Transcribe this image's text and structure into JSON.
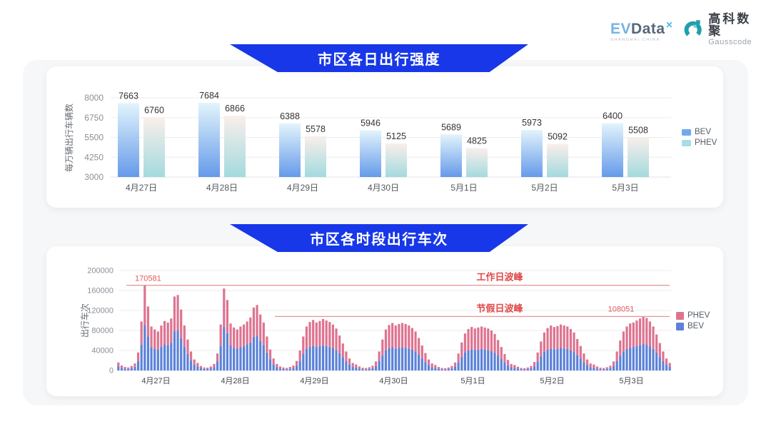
{
  "brand": {
    "evdata": {
      "part1": "EV",
      "part2": "Data",
      "sup": "✕",
      "subtext": "SHANGHAI CHINA"
    },
    "gausscode": {
      "cn": "高科数聚",
      "en": "Gausscode"
    }
  },
  "colors": {
    "banner_blue": "#1737e8",
    "top_bev_gradient": [
      "#e2f4fc",
      "#659ae9"
    ],
    "top_phev_gradient": [
      "#f9efeb",
      "#a3dade"
    ],
    "legend_bev_top": "#72a9ee",
    "legend_phev_top": "#a9dde4",
    "bottom_bev": "#5b82d8",
    "bottom_phev": "#de7390",
    "reference_red_line": "#e69494",
    "reference_red_text": "#e04848"
  },
  "chart_data": [
    {
      "type": "bar",
      "title": "市区各日出行强度",
      "ylabel": "每万辆出行车辆数",
      "ylim": [
        3000,
        8000
      ],
      "yticks": [
        8000,
        6750,
        5500,
        4250,
        3000
      ],
      "grid": true,
      "legend_position": "right",
      "categories": [
        "4月27日",
        "4月28日",
        "4月29日",
        "4月30日",
        "5月1日",
        "5月2日",
        "5月3日"
      ],
      "series": [
        {
          "name": "BEV",
          "values": [
            7663,
            7684,
            6388,
            5946,
            5689,
            5973,
            6400
          ],
          "gradient": [
            "#e2f4fc",
            "#659ae9"
          ]
        },
        {
          "name": "PHEV",
          "values": [
            6760,
            6866,
            5578,
            5125,
            4825,
            5092,
            5508
          ],
          "gradient": [
            "#f9efeb",
            "#a3dade"
          ]
        }
      ]
    },
    {
      "type": "stacked-bar",
      "title": "市区各时段出行车次",
      "ylabel": "出行车次",
      "ylim": [
        0,
        200000
      ],
      "yticks": [
        200000,
        160000,
        120000,
        80000,
        40000,
        0
      ],
      "grid": true,
      "legend_position": "right",
      "categories": [
        "4月27日",
        "4月28日",
        "4月29日",
        "4月30日",
        "5月1日",
        "5月2日",
        "5月3日"
      ],
      "hours_per_day": 24,
      "series": [
        {
          "name": "BEV",
          "color": "#5b82d8",
          "values_by_day": [
            [
              8500,
              5300,
              3700,
              3200,
              4800,
              7400,
              19000,
              52000,
              90000,
              68000,
              46500,
              43500,
              41500,
              47500,
              52500,
              51000,
              55000,
              78500,
              80000,
              64500,
              47500,
              33000,
              20000,
              11500
            ],
            [
              8000,
              4800,
              3200,
              2900,
              4200,
              6900,
              18000,
              49000,
              87000,
              74500,
              50000,
              45500,
              43500,
              46500,
              49000,
              52000,
              56000,
              67000,
              69500,
              59500,
              51000,
              36000,
              22500,
              12500
            ],
            [
              6400,
              3900,
              2900,
              2500,
              3400,
              4900,
              9300,
              19600,
              33300,
              43000,
              47500,
              49500,
              47000,
              48500,
              50500,
              49000,
              47500,
              45000,
              41000,
              34500,
              26500,
              18500,
              11800,
              7400
            ],
            [
              5900,
              3900,
              2700,
              2500,
              3200,
              4700,
              8800,
              18600,
              30400,
              40000,
              44500,
              46500,
              44000,
              45500,
              46500,
              45500,
              44000,
              41500,
              38000,
              32000,
              24500,
              17000,
              10800,
              6900
            ],
            [
              5400,
              3400,
              2500,
              2200,
              2900,
              4400,
              7800,
              16700,
              27400,
              36300,
              40500,
              42500,
              41000,
              42000,
              43000,
              42000,
              41000,
              39000,
              35500,
              30000,
              23000,
              16000,
              10300,
              6400
            ],
            [
              5400,
              3700,
              2500,
              2200,
              2900,
              4400,
              8300,
              17600,
              28400,
              37200,
              41500,
              44000,
              42500,
              43500,
              45000,
              44000,
              43000,
              40500,
              37000,
              31000,
              24000,
              16600,
              10800,
              6900
            ],
            [
              5900,
              3900,
              2700,
              2500,
              3200,
              4700,
              8800,
              18600,
              29400,
              38200,
              43000,
              46000,
              47000,
              49000,
              51000,
              53000,
              51500,
              48000,
              43000,
              35000,
              27000,
              18600,
              11800,
              7400
            ]
          ]
        },
        {
          "name": "PHEV",
          "color": "#de7390",
          "values_by_day": [
            [
              7500,
              4700,
              3300,
              2800,
              4200,
              6600,
              17000,
              46000,
              80581,
              60000,
              41500,
              38500,
              36500,
              42500,
              46500,
              45000,
              49000,
              69500,
              71000,
              57500,
              42500,
              29000,
              18000,
              10500
            ],
            [
              7000,
              4200,
              2800,
              2600,
              3800,
              6100,
              16000,
              43000,
              77000,
              66500,
              44000,
              40500,
              38500,
              41500,
              43000,
              46000,
              50000,
              59000,
              61500,
              52500,
              45000,
              32000,
              19500,
              11500
            ],
            [
              6600,
              4100,
              3100,
              2500,
              3600,
              5100,
              9700,
              20400,
              34700,
              45000,
              49500,
              51500,
              49000,
              50500,
              52500,
              51000,
              49500,
              47000,
              43000,
              35500,
              27500,
              19500,
              12200,
              7600
            ],
            [
              6100,
              4100,
              2800,
              2500,
              3300,
              4800,
              9200,
              19400,
              31600,
              42000,
              46500,
              48500,
              46000,
              47500,
              48500,
              47500,
              46000,
              43500,
              40000,
              33000,
              25500,
              18000,
              11200,
              7100
            ],
            [
              5600,
              3600,
              2500,
              2300,
              3100,
              4600,
              8200,
              17300,
              28600,
              37700,
              42500,
              44500,
              43000,
              44000,
              45000,
              44000,
              43000,
              41000,
              37500,
              31000,
              24000,
              17000,
              10700,
              6600
            ],
            [
              5600,
              3800,
              2500,
              2300,
              3100,
              4600,
              8700,
              18400,
              29600,
              38800,
              43500,
              46000,
              44500,
              45500,
              47000,
              46000,
              45000,
              42500,
              39000,
              32000,
              25000,
              17400,
              11200,
              7100
            ],
            [
              6100,
              4100,
              2800,
              2500,
              3300,
              4800,
              9200,
              19400,
              30600,
              39800,
              45000,
              48000,
              49000,
              51000,
              53000,
              55051,
              53500,
              50000,
              45000,
              37000,
              28000,
              19400,
              12200,
              7600
            ]
          ]
        }
      ],
      "reference_lines": [
        {
          "label": "工作日波峰",
          "value": 170581,
          "value_label": "170581",
          "start_day": 0
        },
        {
          "label": "节假日波峰",
          "value": 108051,
          "value_label": "108051",
          "start_day": 2
        }
      ]
    }
  ]
}
